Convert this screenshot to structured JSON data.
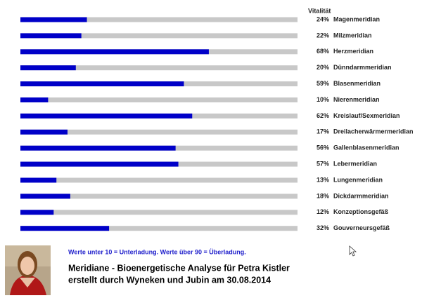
{
  "chart_data": {
    "type": "bar",
    "orientation": "horizontal",
    "value_header": "Vitalität",
    "categories": [
      "Magenmeridian",
      "Milzmeridian",
      "Herzmeridian",
      "Dünndarmmeridian",
      "Blasenmeridian",
      "Nierenmeridian",
      "Kreislauf/Sexmeridian",
      "Dreilacherwärmermeridian",
      "Gallenblasenmeridian",
      "Lebermeridian",
      "Lungenmeridian",
      "Dickdarmmeridian",
      "Konzeptionsgefäß",
      "Gouverneursgefäß"
    ],
    "values": [
      24,
      22,
      68,
      20,
      59,
      10,
      62,
      17,
      56,
      57,
      13,
      18,
      12,
      32
    ],
    "value_labels": [
      "24%",
      "22%",
      "68%",
      "20%",
      "59%",
      "10%",
      "62%",
      "17%",
      "56%",
      "57%",
      "13%",
      "18%",
      "12%",
      "32%"
    ],
    "xlim": [
      0,
      100
    ],
    "color": "#0000c8",
    "track_color": "#c8c8c8",
    "note": "Werte unter 10 = Unterladung. Werte über 90 = Überladung.",
    "title": "Meridiane - Bioenergetische Analyse für Petra Kistler",
    "subtitle": "erstellt durch Wyneken und Jubin am 30.08.2014"
  }
}
